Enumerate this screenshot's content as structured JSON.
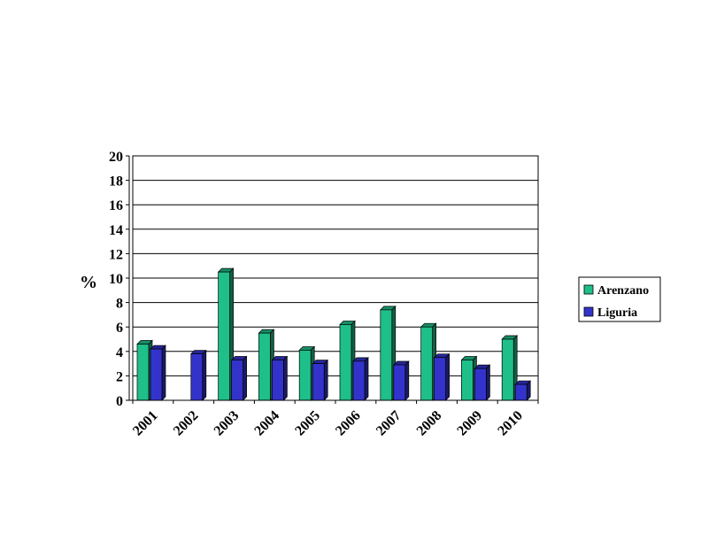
{
  "chart_data": {
    "type": "bar",
    "title": "",
    "xlabel": "",
    "ylabel": "%",
    "ylim": [
      0,
      20
    ],
    "yticks": [
      0,
      2,
      4,
      6,
      8,
      10,
      12,
      14,
      16,
      18,
      20
    ],
    "categories": [
      "2001",
      "2002",
      "2003",
      "2004",
      "2005",
      "2006",
      "2007",
      "2008",
      "2009",
      "2010"
    ],
    "series": [
      {
        "name": "Arenzano",
        "color": "#1fbf8a",
        "values": [
          4.6,
          0,
          10.5,
          5.5,
          4.1,
          6.2,
          7.4,
          6.0,
          3.3,
          5.0
        ]
      },
      {
        "name": "Liguria",
        "color": "#3333cc",
        "values": [
          4.2,
          3.8,
          3.3,
          3.3,
          3.0,
          3.2,
          2.9,
          3.5,
          2.6,
          1.3
        ]
      }
    ],
    "grid": true,
    "legend": "right"
  }
}
